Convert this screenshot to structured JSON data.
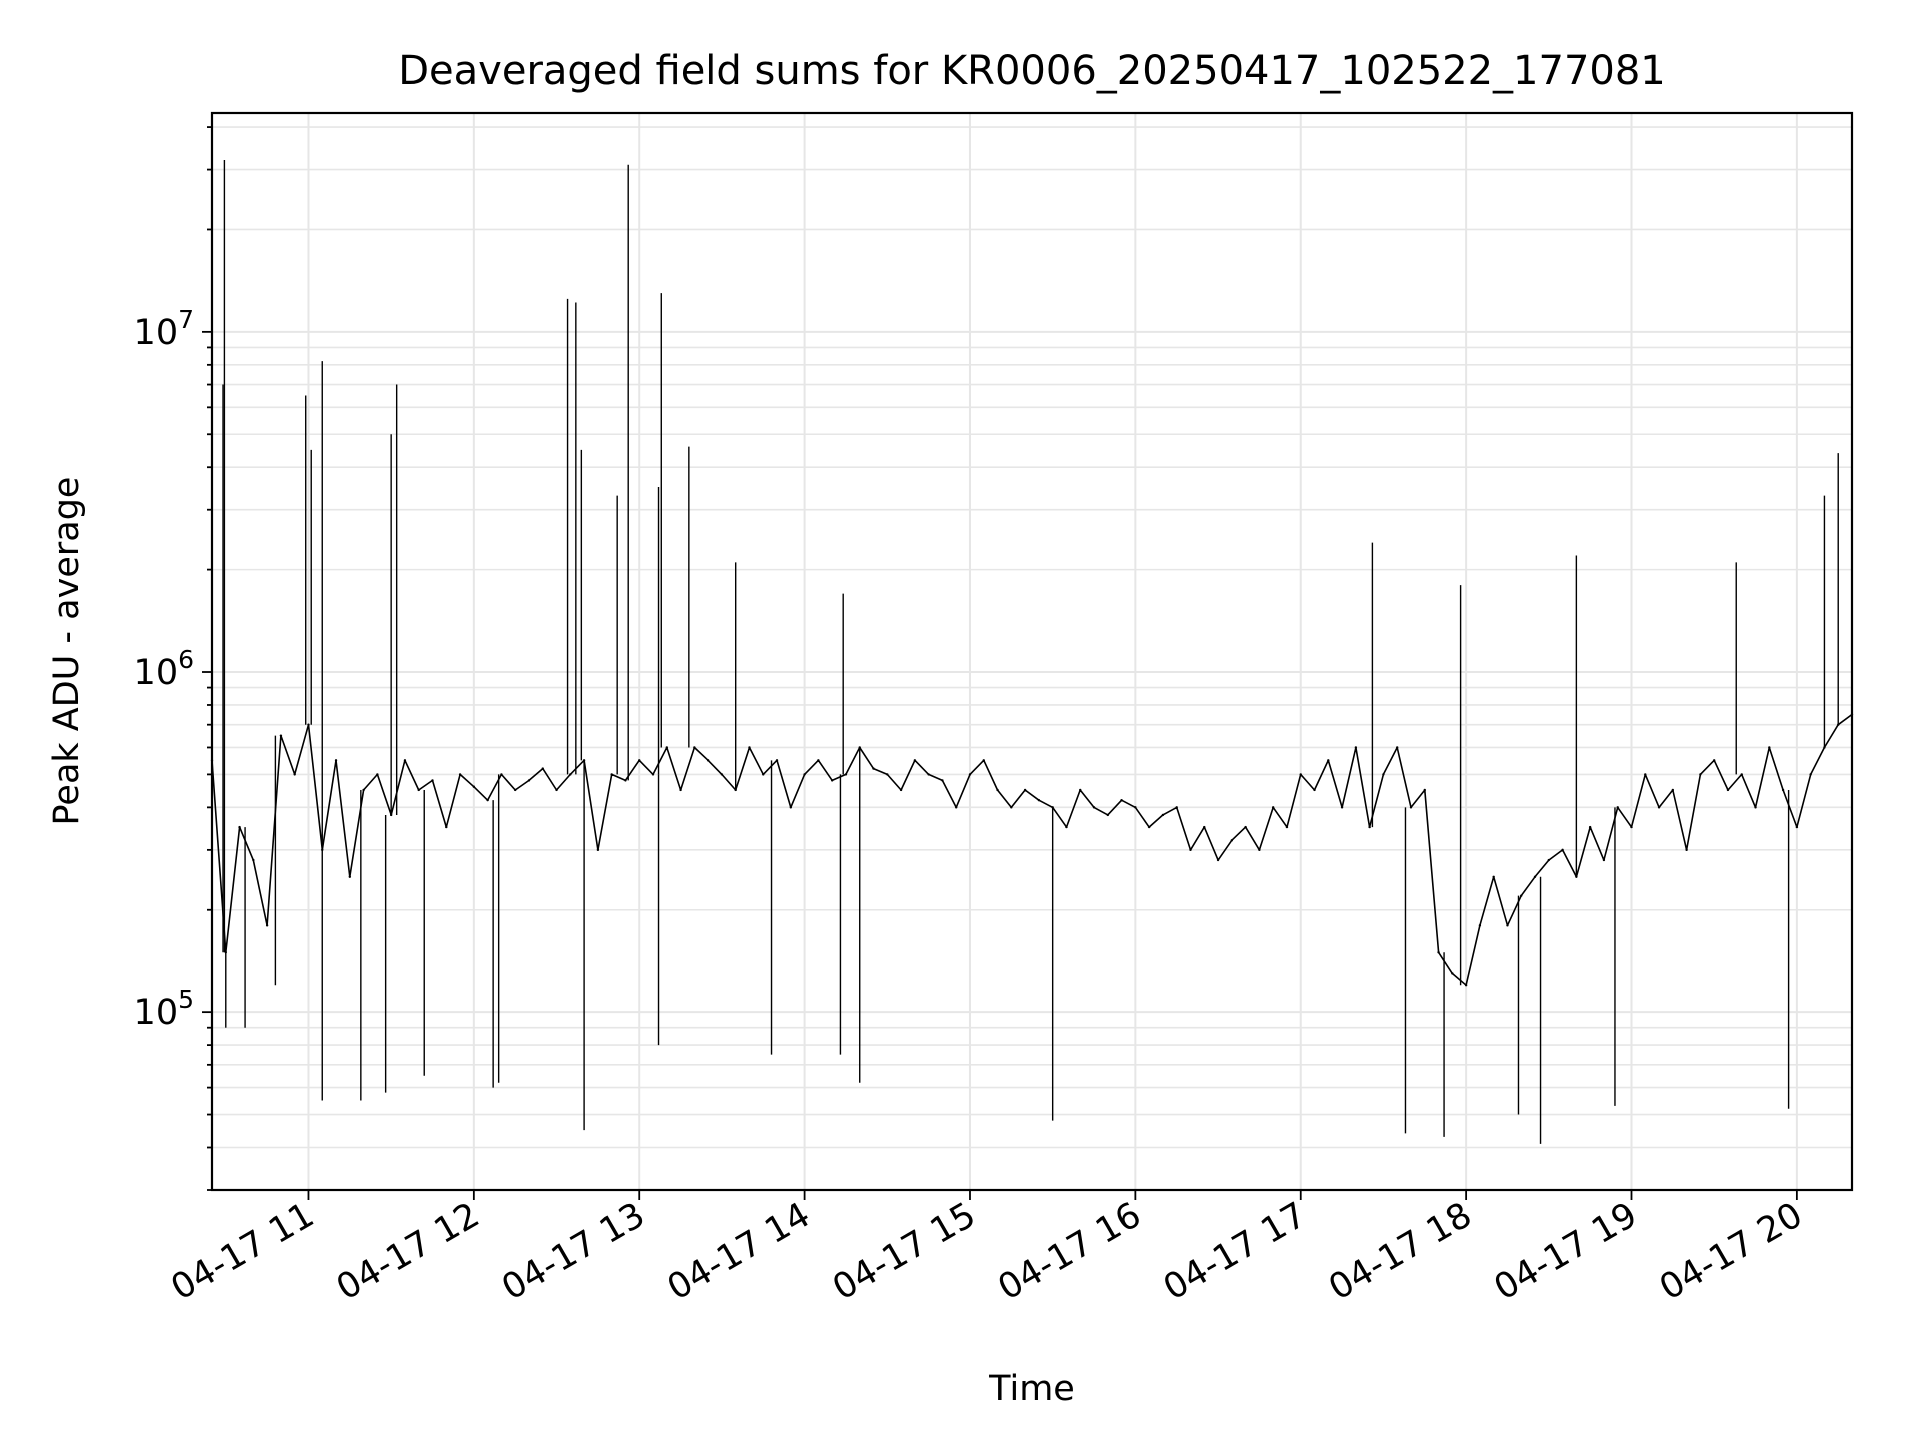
{
  "chart_data": {
    "type": "line",
    "title": "Deaveraged field sums for KR0006_20250417_102522_177081",
    "xlabel": "Time",
    "ylabel": "Peak ADU - average",
    "yscale": "log",
    "grid": true,
    "line_color": "#000000",
    "grid_color": "#e6e6e6",
    "xlim": [
      "2025-04-17 10:25",
      "2025-04-17 20:20"
    ],
    "ylim": [
      30000,
      44000000
    ],
    "x_ticks": [
      {
        "value": "2025-04-17 11:00",
        "label": "04-17 11"
      },
      {
        "value": "2025-04-17 12:00",
        "label": "04-17 12"
      },
      {
        "value": "2025-04-17 13:00",
        "label": "04-17 13"
      },
      {
        "value": "2025-04-17 14:00",
        "label": "04-17 14"
      },
      {
        "value": "2025-04-17 15:00",
        "label": "04-17 15"
      },
      {
        "value": "2025-04-17 16:00",
        "label": "04-17 16"
      },
      {
        "value": "2025-04-17 17:00",
        "label": "04-17 17"
      },
      {
        "value": "2025-04-17 18:00",
        "label": "04-17 18"
      },
      {
        "value": "2025-04-17 19:00",
        "label": "04-17 19"
      },
      {
        "value": "2025-04-17 20:00",
        "label": "04-17 20"
      }
    ],
    "y_ticks": [
      {
        "value": 100000,
        "base": "10",
        "exp": "5"
      },
      {
        "value": 1000000,
        "base": "10",
        "exp": "6"
      },
      {
        "value": 10000000,
        "base": "10",
        "exp": "7"
      }
    ],
    "series": [
      {
        "x": [
          "2025-04-17 10:25",
          "2025-04-17 10:30",
          "2025-04-17 10:35",
          "2025-04-17 10:40",
          "2025-04-17 10:45",
          "2025-04-17 10:50",
          "2025-04-17 10:55",
          "2025-04-17 11:00",
          "2025-04-17 11:05",
          "2025-04-17 11:10",
          "2025-04-17 11:15",
          "2025-04-17 11:20",
          "2025-04-17 11:25",
          "2025-04-17 11:30",
          "2025-04-17 11:35",
          "2025-04-17 11:40",
          "2025-04-17 11:45",
          "2025-04-17 11:50",
          "2025-04-17 11:55",
          "2025-04-17 12:00",
          "2025-04-17 12:05",
          "2025-04-17 12:10",
          "2025-04-17 12:15",
          "2025-04-17 12:20",
          "2025-04-17 12:25",
          "2025-04-17 12:30",
          "2025-04-17 12:35",
          "2025-04-17 12:40",
          "2025-04-17 12:45",
          "2025-04-17 12:50",
          "2025-04-17 12:55",
          "2025-04-17 13:00",
          "2025-04-17 13:05",
          "2025-04-17 13:10",
          "2025-04-17 13:15",
          "2025-04-17 13:20",
          "2025-04-17 13:25",
          "2025-04-17 13:30",
          "2025-04-17 13:35",
          "2025-04-17 13:40",
          "2025-04-17 13:45",
          "2025-04-17 13:50",
          "2025-04-17 13:55",
          "2025-04-17 14:00",
          "2025-04-17 14:05",
          "2025-04-17 14:10",
          "2025-04-17 14:15",
          "2025-04-17 14:20",
          "2025-04-17 14:25",
          "2025-04-17 14:30",
          "2025-04-17 14:35",
          "2025-04-17 14:40",
          "2025-04-17 14:45",
          "2025-04-17 14:50",
          "2025-04-17 14:55",
          "2025-04-17 15:00",
          "2025-04-17 15:05",
          "2025-04-17 15:10",
          "2025-04-17 15:15",
          "2025-04-17 15:20",
          "2025-04-17 15:25",
          "2025-04-17 15:30",
          "2025-04-17 15:35",
          "2025-04-17 15:40",
          "2025-04-17 15:45",
          "2025-04-17 15:50",
          "2025-04-17 15:55",
          "2025-04-17 16:00",
          "2025-04-17 16:05",
          "2025-04-17 16:10",
          "2025-04-17 16:15",
          "2025-04-17 16:20",
          "2025-04-17 16:25",
          "2025-04-17 16:30",
          "2025-04-17 16:35",
          "2025-04-17 16:40",
          "2025-04-17 16:45",
          "2025-04-17 16:50",
          "2025-04-17 16:55",
          "2025-04-17 17:00",
          "2025-04-17 17:05",
          "2025-04-17 17:10",
          "2025-04-17 17:15",
          "2025-04-17 17:20",
          "2025-04-17 17:25",
          "2025-04-17 17:30",
          "2025-04-17 17:35",
          "2025-04-17 17:40",
          "2025-04-17 17:45",
          "2025-04-17 17:50",
          "2025-04-17 17:55",
          "2025-04-17 18:00",
          "2025-04-17 18:05",
          "2025-04-17 18:10",
          "2025-04-17 18:15",
          "2025-04-17 18:20",
          "2025-04-17 18:25",
          "2025-04-17 18:30",
          "2025-04-17 18:35",
          "2025-04-17 18:40",
          "2025-04-17 18:45",
          "2025-04-17 18:50",
          "2025-04-17 18:55",
          "2025-04-17 19:00",
          "2025-04-17 19:05",
          "2025-04-17 19:10",
          "2025-04-17 19:15",
          "2025-04-17 19:20",
          "2025-04-17 19:25",
          "2025-04-17 19:30",
          "2025-04-17 19:35",
          "2025-04-17 19:40",
          "2025-04-17 19:45",
          "2025-04-17 19:50",
          "2025-04-17 19:55",
          "2025-04-17 20:00",
          "2025-04-17 20:05",
          "2025-04-17 20:10",
          "2025-04-17 20:15",
          "2025-04-17 20:20"
        ],
        "y": [
          550000,
          150000,
          350000,
          280000,
          180000,
          650000,
          500000,
          700000,
          300000,
          550000,
          250000,
          450000,
          500000,
          380000,
          550000,
          450000,
          480000,
          350000,
          500000,
          460000,
          420000,
          500000,
          450000,
          480000,
          520000,
          450000,
          500000,
          550000,
          300000,
          500000,
          480000,
          550000,
          500000,
          600000,
          450000,
          600000,
          550000,
          500000,
          450000,
          600000,
          500000,
          550000,
          400000,
          500000,
          550000,
          480000,
          500000,
          600000,
          520000,
          500000,
          450000,
          550000,
          500000,
          480000,
          400000,
          500000,
          550000,
          450000,
          400000,
          450000,
          420000,
          400000,
          350000,
          450000,
          400000,
          380000,
          420000,
          400000,
          350000,
          380000,
          400000,
          300000,
          350000,
          280000,
          320000,
          350000,
          300000,
          400000,
          350000,
          500000,
          450000,
          550000,
          400000,
          600000,
          350000,
          500000,
          600000,
          400000,
          450000,
          150000,
          130000,
          120000,
          180000,
          250000,
          180000,
          220000,
          250000,
          280000,
          300000,
          250000,
          350000,
          280000,
          400000,
          350000,
          500000,
          400000,
          450000,
          300000,
          500000,
          550000,
          450000,
          500000,
          400000,
          600000,
          450000,
          350000,
          500000,
          600000,
          700000,
          750000
        ]
      },
      {
        "x": [
          "2025-04-17 10:29",
          "2025-04-17 10:29:30",
          "2025-04-17 10:30",
          "2025-04-17 10:59",
          "2025-04-17 11:05",
          "2025-04-17 11:01",
          "2025-04-17 11:30",
          "2025-04-17 11:32",
          "2025-04-17 12:34",
          "2025-04-17 12:37",
          "2025-04-17 12:39",
          "2025-04-17 12:52",
          "2025-04-17 12:56",
          "2025-04-17 13:07",
          "2025-04-17 13:08",
          "2025-04-17 13:18",
          "2025-04-17 13:35",
          "2025-04-17 14:14",
          "2025-04-17 17:26",
          "2025-04-17 17:58",
          "2025-04-17 18:40",
          "2025-04-17 19:38",
          "2025-04-17 20:10",
          "2025-04-17 20:15"
        ],
        "y": [
          7000000,
          32000000,
          90000,
          6500000,
          8200000,
          4500000,
          5000000,
          7000000,
          12500000,
          12200000,
          4500000,
          3300000,
          31000000,
          3500000,
          13000000,
          4600000,
          2100000,
          1700000,
          2400000,
          1800000,
          2200000,
          2100000,
          3300000,
          4400000
        ]
      },
      {
        "x": [
          "2025-04-17 10:37",
          "2025-04-17 10:48",
          "2025-04-17 11:05",
          "2025-04-17 11:19",
          "2025-04-17 11:28",
          "2025-04-17 11:42",
          "2025-04-17 12:07",
          "2025-04-17 12:09",
          "2025-04-17 12:40",
          "2025-04-17 13:07",
          "2025-04-17 13:48",
          "2025-04-17 14:13",
          "2025-04-17 14:20",
          "2025-04-17 15:30",
          "2025-04-17 17:38",
          "2025-04-17 17:52",
          "2025-04-17 18:19",
          "2025-04-17 18:27",
          "2025-04-17 18:54",
          "2025-04-17 19:57"
        ],
        "y": [
          90000,
          120000,
          55000,
          55000,
          58000,
          65000,
          60000,
          62000,
          45000,
          80000,
          75000,
          75000,
          62000,
          48000,
          44000,
          43000,
          50000,
          41000,
          53000,
          52000
        ]
      }
    ]
  }
}
